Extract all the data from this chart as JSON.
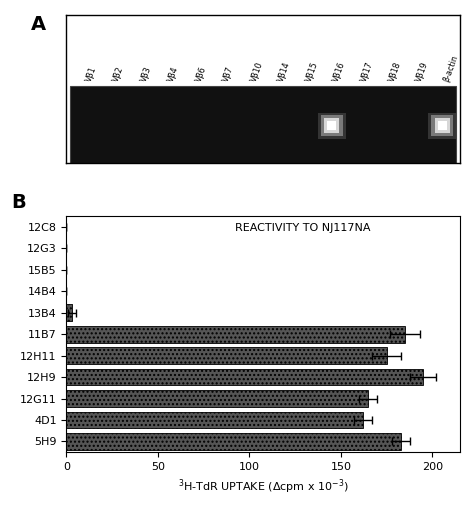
{
  "panel_a": {
    "labels": [
      "Vβ1",
      "Vβ2",
      "Vβ3",
      "Vβ4",
      "Vβ6",
      "Vβ7",
      "Vβ10",
      "Vβ14",
      "Vβ15",
      "Vβ16",
      "Vβ17",
      "Vβ18",
      "Vβ19",
      "β-actin"
    ],
    "band_indices": [
      9,
      13
    ],
    "gel_bg": "#111111",
    "panel_label": "A"
  },
  "panel_b": {
    "panel_label": "B",
    "categories": [
      "12C8",
      "12G3",
      "15B5",
      "14B4",
      "13B4",
      "11B7",
      "12H11",
      "12H9",
      "12G11",
      "4D1",
      "5H9"
    ],
    "values": [
      0,
      0,
      0,
      0,
      3,
      185,
      175,
      195,
      165,
      162,
      183
    ],
    "errors": [
      0,
      0,
      0,
      0,
      2,
      8,
      8,
      7,
      5,
      5,
      5
    ],
    "bar_color": "#555555",
    "xlabel": "$^{3}$H-TdR UPTAKE (Δcpm x 10$^{-3}$)",
    "title": "REACTIVITY TO NJ117NA",
    "xlim": [
      0,
      215
    ],
    "xticks": [
      0,
      50,
      100,
      150,
      200
    ],
    "background_color": "#ffffff"
  },
  "figure_bg": "#ffffff"
}
